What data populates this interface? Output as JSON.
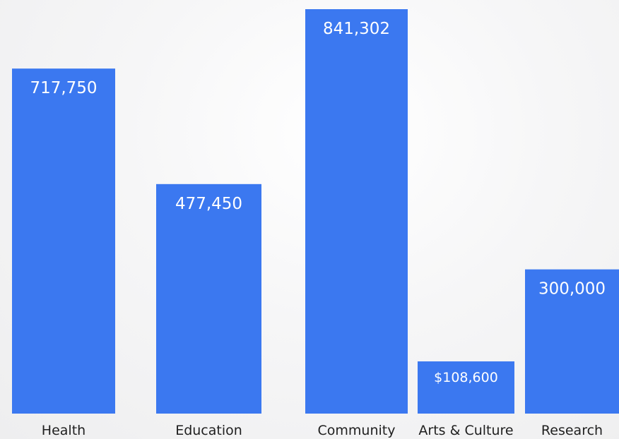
{
  "chart_data": {
    "type": "bar",
    "categories": [
      "Health",
      "Education",
      "Community",
      "Arts & Culture",
      "Research"
    ],
    "values": [
      717750,
      477450,
      841302,
      108600,
      300000
    ],
    "value_labels": [
      "717,750",
      "477,450",
      "841,302",
      "$108,600",
      "300,000"
    ],
    "title": "",
    "xlabel": "",
    "ylabel": "",
    "ylim": [
      0,
      841302
    ],
    "grid": false,
    "bar_color": "#3b78f0"
  }
}
